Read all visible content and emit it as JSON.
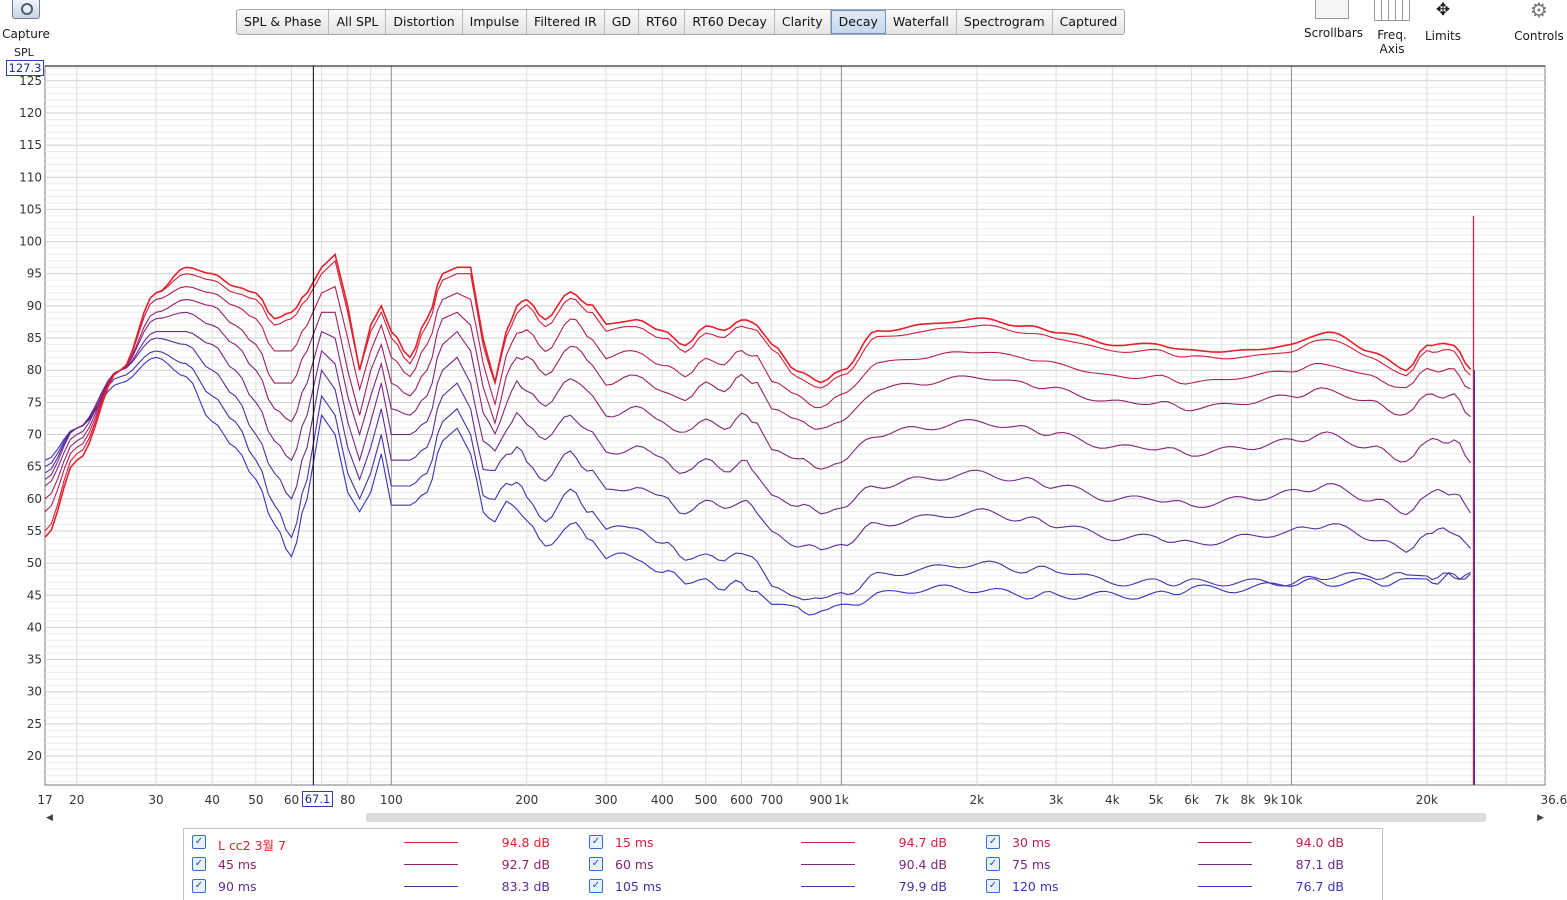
{
  "toolbar": {
    "capture_label": "Capture",
    "tabs": [
      {
        "label": "SPL & Phase"
      },
      {
        "label": "All SPL"
      },
      {
        "label": "Distortion"
      },
      {
        "label": "Impulse"
      },
      {
        "label": "Filtered IR"
      },
      {
        "label": "GD"
      },
      {
        "label": "RT60"
      },
      {
        "label": "RT60 Decay"
      },
      {
        "label": "Clarity"
      },
      {
        "label": "Decay",
        "active": true
      },
      {
        "label": "Waterfall"
      },
      {
        "label": "Spectrogram"
      },
      {
        "label": "Captured"
      }
    ],
    "scrollbars_label": "Scrollbars",
    "freq_axis_label": "Freq. Axis",
    "limits_label": "Limits",
    "controls_label": "Controls"
  },
  "plot": {
    "y_unit": "SPL",
    "y_top_readout": "127.3",
    "cursor_readout": "67.1",
    "x_end_label": "36.6kHz"
  },
  "chart_data": {
    "type": "line",
    "ylabel": "SPL",
    "xscale": "log",
    "xlim": [
      17,
      36600
    ],
    "ylim": [
      15.5,
      127.3
    ],
    "yticks": [
      20,
      25,
      30,
      35,
      40,
      45,
      50,
      55,
      60,
      65,
      70,
      75,
      80,
      85,
      90,
      95,
      100,
      105,
      110,
      115,
      120,
      125
    ],
    "xticks": [
      {
        "v": 17,
        "label": "17"
      },
      {
        "v": 20,
        "label": "20"
      },
      {
        "v": 30,
        "label": "30"
      },
      {
        "v": 40,
        "label": "40"
      },
      {
        "v": 50,
        "label": "50"
      },
      {
        "v": 60,
        "label": "60"
      },
      {
        "v": 80,
        "label": "80"
      },
      {
        "v": 100,
        "label": "100"
      },
      {
        "v": 200,
        "label": "200"
      },
      {
        "v": 300,
        "label": "300"
      },
      {
        "v": 400,
        "label": "400"
      },
      {
        "v": 500,
        "label": "500"
      },
      {
        "v": 600,
        "label": "600"
      },
      {
        "v": 700,
        "label": "700"
      },
      {
        "v": 900,
        "label": "900"
      },
      {
        "v": 1000,
        "label": "1k"
      },
      {
        "v": 2000,
        "label": "2k"
      },
      {
        "v": 3000,
        "label": "3k"
      },
      {
        "v": 4000,
        "label": "4k"
      },
      {
        "v": 5000,
        "label": "5k"
      },
      {
        "v": 6000,
        "label": "6k"
      },
      {
        "v": 7000,
        "label": "7k"
      },
      {
        "v": 8000,
        "label": "8k"
      },
      {
        "v": 9000,
        "label": "9k"
      },
      {
        "v": 10000,
        "label": "10k"
      },
      {
        "v": 20000,
        "label": "20k"
      }
    ],
    "cursor_x": 67.1,
    "x": [
      17,
      20,
      25,
      30,
      35,
      40,
      45,
      50,
      55,
      60,
      65,
      70,
      75,
      80,
      85,
      90,
      95,
      100,
      110,
      120,
      130,
      140,
      150,
      160,
      170,
      180,
      190,
      200,
      220,
      250,
      280,
      300,
      350,
      400,
      450,
      500,
      550,
      600,
      650,
      700,
      800,
      900,
      1000,
      1200,
      1500,
      2000,
      2500,
      3000,
      4000,
      5000,
      6000,
      8000,
      10000,
      12000,
      15000,
      18000,
      20000,
      23000,
      25000
    ],
    "series": [
      {
        "name": "L cc2 3월 7",
        "value": "94.8 dB",
        "color": "#e8202a",
        "values": [
          54,
          66,
          80,
          92,
          96,
          95,
          93,
          92,
          88,
          89,
          92,
          96,
          98,
          90,
          80,
          87,
          90,
          86,
          82,
          88,
          95,
          96,
          96,
          85,
          78,
          86,
          90,
          91,
          88,
          92,
          90,
          87,
          88,
          86,
          84,
          87,
          86,
          88,
          87,
          84,
          80,
          78,
          80,
          86,
          87,
          88,
          87,
          86,
          84,
          84,
          83,
          83,
          84,
          86,
          83,
          80,
          84,
          84,
          80
        ]
      },
      {
        "name": "15 ms",
        "value": "94.7 dB",
        "color": "#d41f3c",
        "values": [
          55,
          67,
          80,
          92,
          95,
          94,
          92,
          91,
          87,
          88,
          91,
          95,
          97,
          89,
          80,
          86,
          89,
          85,
          81,
          87,
          94,
          95,
          95,
          84,
          78,
          85,
          89,
          90,
          87,
          91,
          89,
          86,
          87,
          85,
          83,
          86,
          85,
          87,
          86,
          83,
          79,
          77,
          79,
          85,
          86,
          87,
          86,
          85,
          83,
          83,
          82,
          82,
          83,
          85,
          82,
          79,
          83,
          83,
          79
        ]
      },
      {
        "name": "30 ms",
        "value": "94.0 dB",
        "color": "#b61f55",
        "values": [
          58,
          68,
          80,
          91,
          93,
          92,
          90,
          88,
          83,
          83,
          87,
          92,
          93,
          85,
          77,
          83,
          87,
          82,
          79,
          84,
          91,
          92,
          91,
          81,
          75,
          82,
          86,
          86,
          83,
          88,
          85,
          82,
          83,
          81,
          79,
          82,
          81,
          83,
          82,
          78,
          76,
          74,
          76,
          81,
          82,
          83,
          82,
          81,
          79,
          79,
          78,
          79,
          80,
          81,
          79,
          77,
          80,
          80,
          77
        ]
      },
      {
        "name": "45 ms",
        "value": "92.7 dB",
        "color": "#9a2068",
        "values": [
          60,
          69,
          80,
          89,
          91,
          90,
          87,
          84,
          78,
          78,
          83,
          89,
          89,
          80,
          73,
          80,
          84,
          78,
          76,
          80,
          88,
          89,
          87,
          77,
          72,
          79,
          82,
          82,
          79,
          84,
          81,
          78,
          79,
          77,
          75,
          78,
          77,
          79,
          78,
          74,
          72,
          71,
          72,
          77,
          78,
          79,
          78,
          77,
          75,
          75,
          74,
          75,
          76,
          77,
          75,
          73,
          76,
          76,
          73
        ]
      },
      {
        "name": "60 ms",
        "value": "90.4 dB",
        "color": "#852479",
        "values": [
          62,
          70,
          80,
          88,
          89,
          87,
          84,
          80,
          74,
          72,
          78,
          86,
          85,
          76,
          70,
          76,
          81,
          74,
          73,
          76,
          84,
          86,
          83,
          73,
          70,
          75,
          78,
          77,
          74,
          79,
          76,
          73,
          74,
          72,
          70,
          72,
          71,
          73,
          72,
          68,
          66,
          65,
          66,
          70,
          71,
          72,
          71,
          70,
          68,
          68,
          67,
          68,
          69,
          70,
          68,
          66,
          69,
          69,
          66
        ]
      },
      {
        "name": "75 ms",
        "value": "87.1 dB",
        "color": "#72288a",
        "values": [
          63,
          71,
          80,
          86,
          86,
          84,
          80,
          75,
          69,
          66,
          73,
          83,
          81,
          72,
          66,
          72,
          78,
          70,
          70,
          72,
          80,
          82,
          78,
          69,
          67,
          71,
          73,
          72,
          69,
          73,
          70,
          67,
          68,
          66,
          64,
          66,
          64,
          66,
          64,
          61,
          59,
          58,
          59,
          62,
          63,
          64,
          63,
          62,
          60,
          60,
          59,
          60,
          61,
          62,
          60,
          58,
          61,
          61,
          58
        ]
      },
      {
        "name": "90 ms",
        "value": "83.3 dB",
        "color": "#5e2b98",
        "values": [
          64,
          71,
          80,
          85,
          84,
          80,
          76,
          70,
          64,
          60,
          68,
          80,
          77,
          68,
          63,
          68,
          74,
          66,
          66,
          68,
          76,
          78,
          74,
          65,
          64,
          67,
          68,
          66,
          63,
          67,
          64,
          61,
          62,
          60,
          58,
          60,
          58,
          60,
          58,
          55,
          53,
          52,
          53,
          56,
          57,
          58,
          57,
          56,
          54,
          54,
          53,
          54,
          55,
          56,
          54,
          52,
          55,
          55,
          52
        ]
      },
      {
        "name": "105 ms",
        "value": "79.9 dB",
        "color": "#4a2ea8",
        "values": [
          65,
          71,
          79,
          83,
          81,
          76,
          72,
          66,
          59,
          54,
          63,
          76,
          73,
          64,
          60,
          64,
          70,
          62,
          62,
          64,
          72,
          74,
          70,
          61,
          60,
          62,
          63,
          60,
          57,
          61,
          58,
          55,
          56,
          53,
          51,
          52,
          50,
          52,
          50,
          46,
          45,
          44,
          45,
          48,
          49,
          50,
          49,
          49,
          47,
          47,
          47,
          47,
          47,
          48,
          48,
          48,
          48,
          48,
          48
        ]
      },
      {
        "name": "120 ms",
        "value": "76.7 dB",
        "color": "#3733c0",
        "values": [
          66,
          71,
          78,
          82,
          79,
          72,
          68,
          63,
          56,
          51,
          60,
          73,
          70,
          61,
          58,
          61,
          67,
          59,
          59,
          61,
          69,
          71,
          67,
          58,
          57,
          59,
          59,
          56,
          53,
          56,
          54,
          51,
          51,
          49,
          47,
          48,
          46,
          47,
          45,
          43,
          43,
          42,
          43,
          45,
          46,
          46,
          45,
          45,
          45,
          45,
          46,
          46,
          47,
          47,
          47,
          47,
          47,
          48,
          48
        ]
      }
    ]
  }
}
